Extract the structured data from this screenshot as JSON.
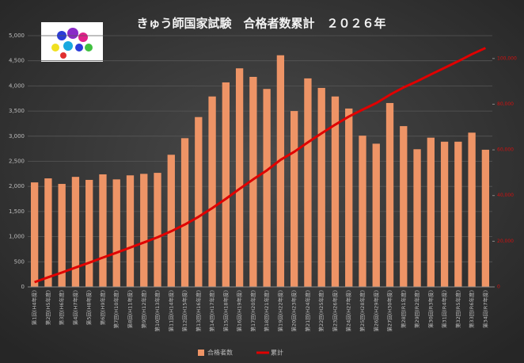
{
  "chart_data": {
    "type": "bar-line",
    "title": "きゅう師国家試験　合格者数累計　２０２６年",
    "categories": [
      "第1回(H4年度)",
      "第2回(H5年度)",
      "第3回(H6年度)",
      "第4回(H7年度)",
      "第5回(H8年度)",
      "第6回(H9年度)",
      "第7回(H10年度)",
      "第8回(H11年度)",
      "第9回(H12年度)",
      "第10回(H13年度)",
      "第11回(H14年度)",
      "第12回(H15年度)",
      "第13回(H16年度)",
      "第14回(H17年度)",
      "第15回(H18年度)",
      "第16回(H19年度)",
      "第17回(H20年度)",
      "第18回(H21年度)",
      "第19回(H22年度)",
      "第20回(H23年度)",
      "第21回(H24年度)",
      "第22回(H25年度)",
      "第23回(H26年度)",
      "第24回(H27年度)",
      "第25回(H28年度)",
      "第26回(H29年度)",
      "第27回(H30年度)",
      "第28回(R1年度)",
      "第29回(R2年度)",
      "第30回(R3年度)",
      "第31回(R4年度)",
      "第32回(R5年度)",
      "第33回(R6年度)",
      "第34回(R7年度)"
    ],
    "series": [
      {
        "name": "合格者数",
        "type": "bar",
        "color": "#ee9466",
        "values": [
          2080,
          2160,
          2050,
          2190,
          2130,
          2240,
          2140,
          2220,
          2250,
          2270,
          2630,
          2960,
          3380,
          3790,
          4070,
          4350,
          4180,
          3940,
          4610,
          3500,
          4150,
          3960,
          3790,
          3550,
          3010,
          2850,
          3660,
          3200,
          2740,
          2970,
          2890,
          2890,
          3070,
          2730
        ]
      },
      {
        "name": "累計",
        "type": "line",
        "axis": "y2",
        "color": "#e00000",
        "values": [
          2080,
          4240,
          6290,
          8480,
          10610,
          12850,
          14990,
          17210,
          19460,
          21730,
          24360,
          27320,
          30700,
          34490,
          38560,
          42910,
          47090,
          51030,
          55640,
          59140,
          63290,
          67250,
          71040,
          74590,
          77600,
          80450,
          84110,
          87310,
          90050,
          93020,
          95910,
          98800,
          101870,
          104600
        ]
      }
    ],
    "ylim": [
      0,
      5000
    ],
    "yticks": [
      0,
      500,
      {
        "value": 1000,
        "label": "1,000"
      },
      {
        "value": 1500,
        "label": "1,500"
      },
      {
        "value": 2000,
        "label": "2,000"
      },
      {
        "value": 2500,
        "label": "2,500"
      },
      {
        "value": 3000,
        "label": "3,000"
      },
      {
        "value": 3500,
        "label": "3,500"
      },
      {
        "value": 4000,
        "label": "4,000"
      },
      {
        "value": 4500,
        "label": "4,500"
      },
      {
        "value": 5000,
        "label": "5,000"
      }
    ],
    "y2lim": [
      0,
      110000
    ],
    "y2ticks": [
      0,
      {
        "value": 20000,
        "label": "20,000"
      },
      {
        "value": 40000,
        "label": "40,000"
      },
      {
        "value": 60000,
        "label": "60,000"
      },
      {
        "value": 80000,
        "label": "80,000"
      },
      {
        "value": 100000,
        "label": "100,000"
      }
    ],
    "grid": true
  }
}
